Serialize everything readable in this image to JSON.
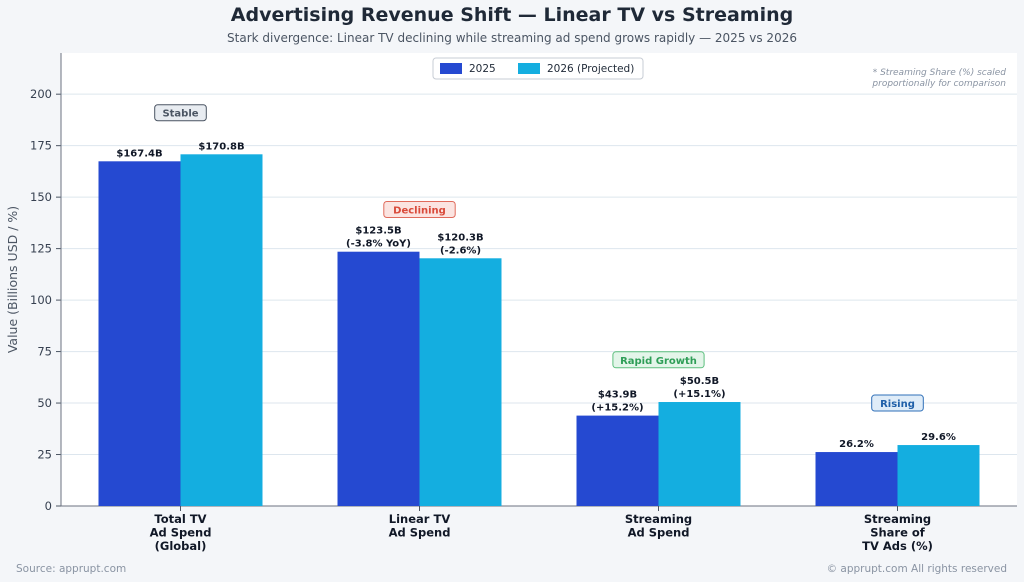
{
  "title": "Advertising Revenue Shift — Linear TV vs Streaming",
  "subtitle": "Stark divergence: Linear TV declining while streaming ad spend grows rapidly — 2025 vs 2026",
  "note_lines": [
    "* Streaming Share (%) scaled",
    "proportionally for comparison"
  ],
  "footer_left": "Source: apprupt.com",
  "footer_right": "© apprupt.com  All rights reserved",
  "colors": {
    "series_2025": "#2549d1",
    "series_2026": "#14aee0"
  },
  "chart_data": {
    "type": "bar",
    "title": "Advertising Revenue Shift — Linear TV vs Streaming",
    "ylabel": "Value (Billions USD / %)",
    "ylim": [
      0,
      220
    ],
    "yticks": [
      0,
      25,
      50,
      75,
      100,
      125,
      150,
      175,
      200
    ],
    "grid": true,
    "legend_position": "top-center",
    "categories": [
      [
        "Total TV",
        "Ad Spend",
        "(Global)"
      ],
      [
        "Linear TV",
        "Ad Spend"
      ],
      [
        "Streaming",
        "Ad Spend"
      ],
      [
        "Streaming",
        "Share of",
        "TV Ads (%)"
      ]
    ],
    "series": [
      {
        "name": "2025",
        "values": [
          167.4,
          123.5,
          43.9,
          26.2
        ],
        "labels": [
          [
            "$167.4B"
          ],
          [
            "$123.5B",
            "(-3.8% YoY)"
          ],
          [
            "$43.9B",
            "(+15.2%)"
          ],
          [
            "26.2%"
          ]
        ]
      },
      {
        "name": "2026 (Projected)",
        "values": [
          170.8,
          120.3,
          50.5,
          29.6
        ],
        "labels": [
          [
            "$170.8B"
          ],
          [
            "$120.3B",
            "(-2.6%)"
          ],
          [
            "$50.5B",
            "(+15.1%)"
          ],
          [
            "29.6%"
          ]
        ]
      }
    ],
    "annotations": [
      {
        "category_index": 0,
        "text": "Stable",
        "value": 191,
        "text_color": "#4b5563",
        "border": "#4b5563",
        "fill": "#e8ecf1"
      },
      {
        "category_index": 1,
        "text": "Declining",
        "value": 144,
        "text_color": "#d94a3a",
        "border": "#e06b5c",
        "fill": "#fbe4e1"
      },
      {
        "category_index": 2,
        "text": "Rapid Growth",
        "value": 71,
        "text_color": "#2f9e57",
        "border": "#5cbf7d",
        "fill": "#e3f5e9"
      },
      {
        "category_index": 3,
        "text": "Rising",
        "value": 50,
        "text_color": "#1f5fa8",
        "border": "#2f6fb8",
        "fill": "#dfecf8"
      }
    ]
  }
}
